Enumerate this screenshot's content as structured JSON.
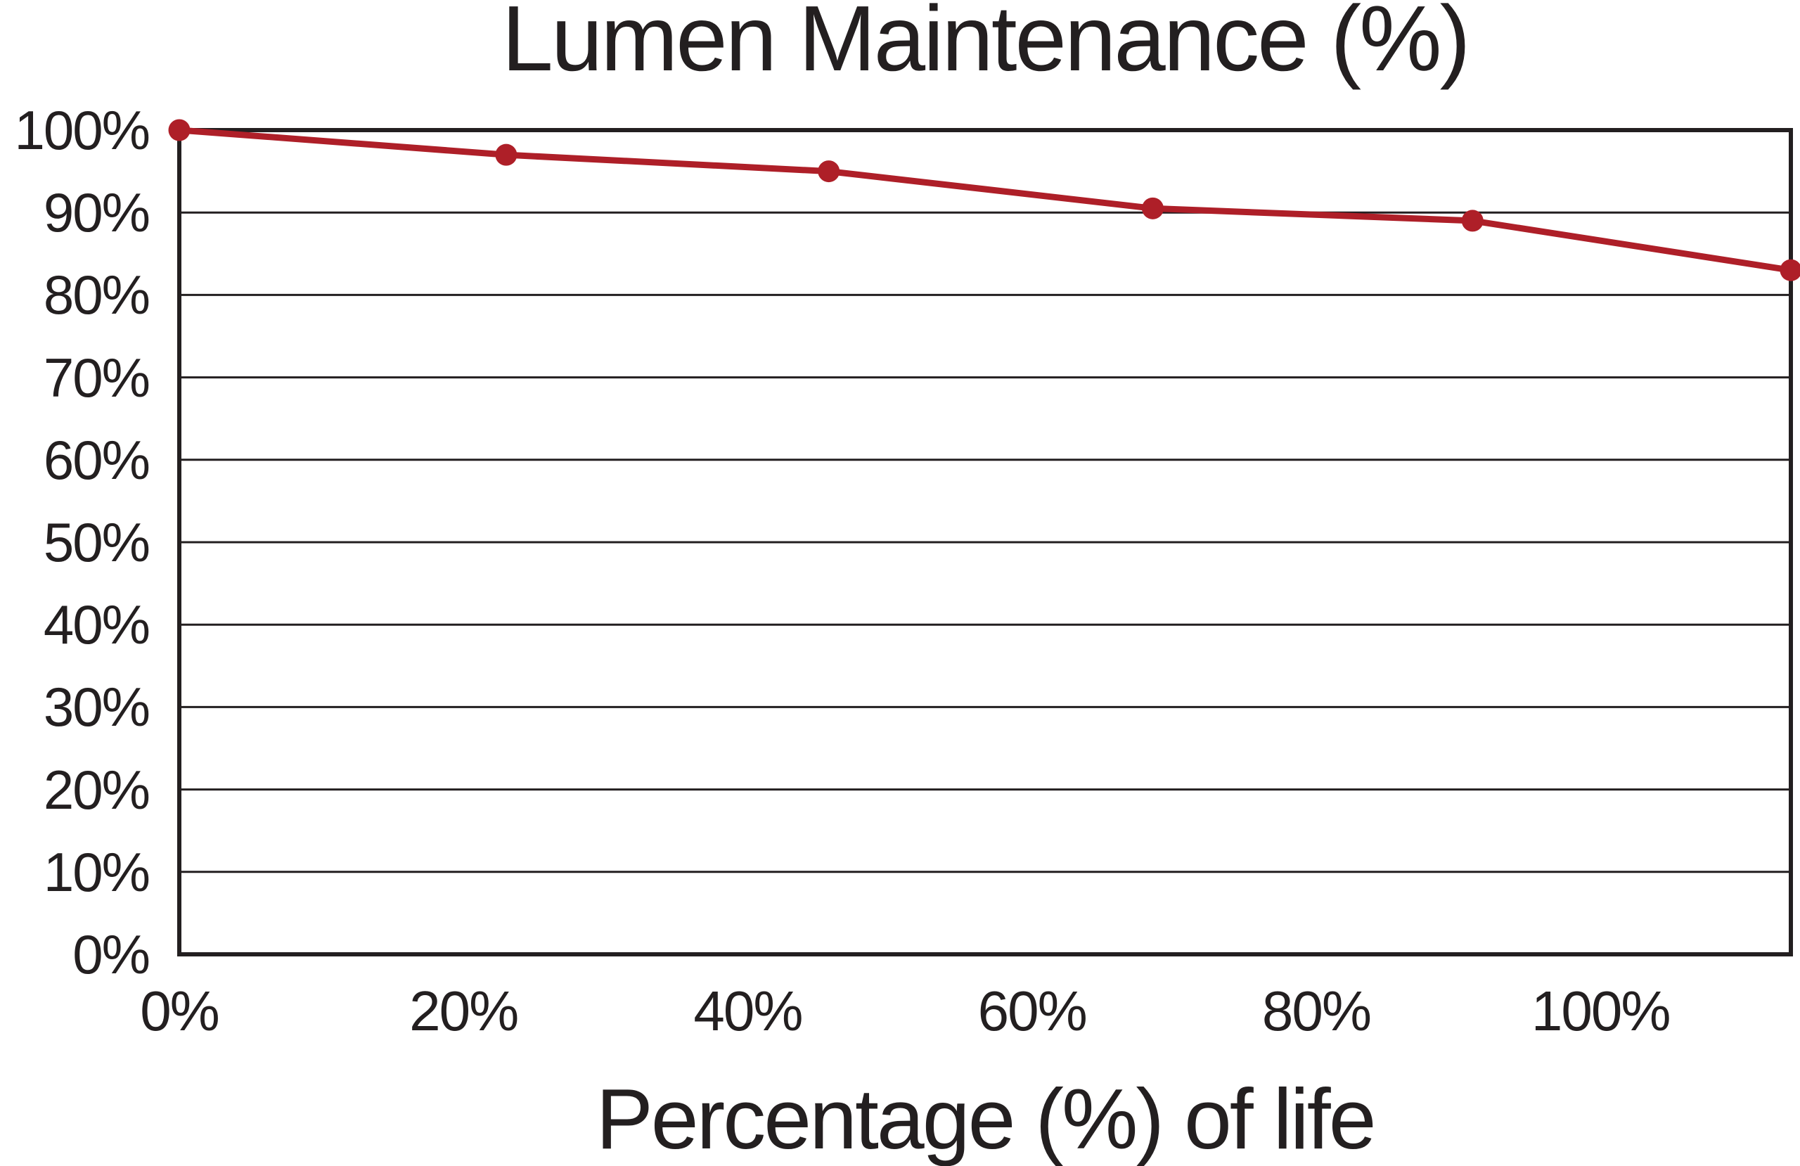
{
  "page": {
    "background": "#ffffff"
  },
  "chart_data": {
    "type": "line",
    "title": "Lumen Maintenance (%)",
    "xlabel": "Percentage (%) of life",
    "ylabel": "",
    "legend": "none",
    "grid": "horizontal",
    "xlim": [
      0,
      113.4
    ],
    "ylim": [
      0,
      100
    ],
    "x_tick_values": [
      0,
      20,
      40,
      60,
      80,
      100
    ],
    "x_tick_labels": [
      "0%",
      "20%",
      "40%",
      "60%",
      "80%",
      "100%"
    ],
    "y_tick_values": [
      100,
      90,
      80,
      70,
      60,
      50,
      40,
      30,
      20,
      10,
      0
    ],
    "y_tick_labels": [
      "100%",
      "90%",
      "80%",
      "70%",
      "60%",
      "50%",
      "40%",
      "30%",
      "20%",
      "10%",
      "0%"
    ],
    "series": [
      {
        "name": "Lumen maintenance",
        "x": [
          0,
          23,
          45.7,
          68.5,
          91,
          113.4
        ],
        "y": [
          100,
          97,
          95,
          90.5,
          89,
          83
        ],
        "color": "#ae1f28",
        "marker": "circle"
      }
    ],
    "colors": {
      "accent": "#ae1f28",
      "text": "#231f20",
      "grid": "#231f20",
      "axis": "#231f20",
      "background": "#ffffff"
    }
  }
}
